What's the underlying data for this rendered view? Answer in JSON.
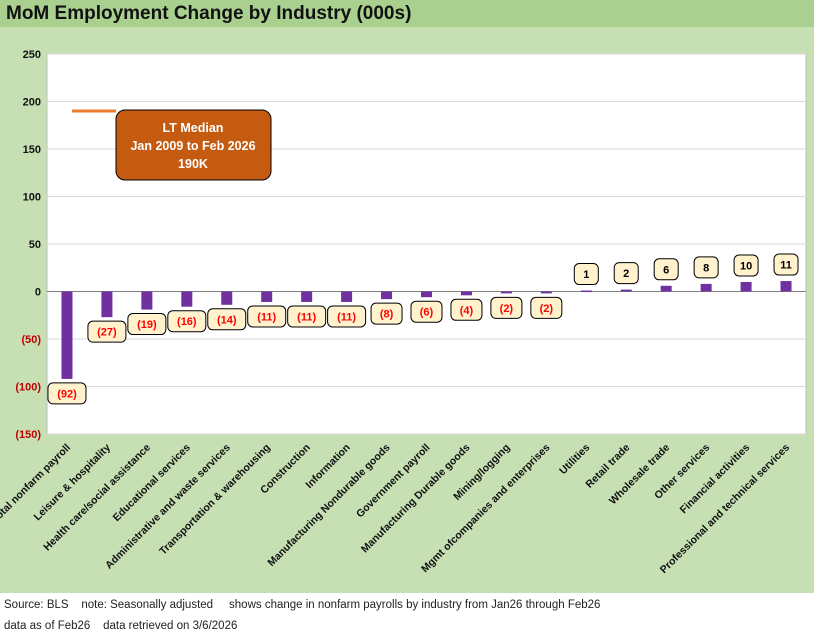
{
  "title": "MoM Employment Change by Industry (000s)",
  "footer": {
    "line1": "Source: BLS    note: Seasonally adjusted     shows change in nonfarm payrolls by industry from Jan26 through Feb26",
    "line2": "data as of Feb26    data retrieved on 3/6/2026"
  },
  "colors": {
    "bar": "#7030a0",
    "median_line": "#ed7d31",
    "callout_fill": "#c55a11",
    "negative_label": "#ff0000",
    "label_box": "#fff2cc"
  },
  "chart_data": {
    "type": "bar",
    "title": "MoM Employment Change by Industry (000s)",
    "categories": [
      "Total nonfarm payroll",
      "Leisure & hospitality",
      "Health care/social assistance",
      "Educational services",
      "Administrative and waste services",
      "Transportation & warehousing",
      "Construction",
      "Information",
      "Manufacturing Nondurable goods",
      "Government payroll",
      "Manufacturing Durable goods",
      "Mining/logging",
      "Mgmt ofcompanies and enterprises",
      "Utilities",
      "Retail trade",
      "Wholesale trade",
      "Other services",
      "Financial activities",
      "Professional and technical services"
    ],
    "values": [
      -92,
      -27,
      -19,
      -16,
      -14,
      -11,
      -11,
      -11,
      -8,
      -6,
      -4,
      -2,
      -2,
      1,
      2,
      6,
      8,
      10,
      11
    ],
    "data_labels": [
      "(92)",
      "(27)",
      "(19)",
      "(16)",
      "(14)",
      "(11)",
      "(11)",
      "(11)",
      "(8)",
      "(6)",
      "(4)",
      "(2)",
      "(2)",
      "1",
      "2",
      "6",
      "8",
      "10",
      "11"
    ],
    "ylim": [
      -150,
      250
    ],
    "yticks": [
      250,
      200,
      150,
      100,
      50,
      0,
      -50,
      -100,
      -150
    ],
    "ytick_labels": [
      "250",
      "200",
      "150",
      "100",
      "50",
      "0",
      "(50)",
      "(100)",
      "(150)"
    ],
    "gridlines": true,
    "xlabel": "",
    "ylabel": "",
    "median": {
      "value": 190,
      "label_lines": [
        "LT Median",
        "Jan 2009 to Feb 2026",
        "190K"
      ]
    }
  }
}
